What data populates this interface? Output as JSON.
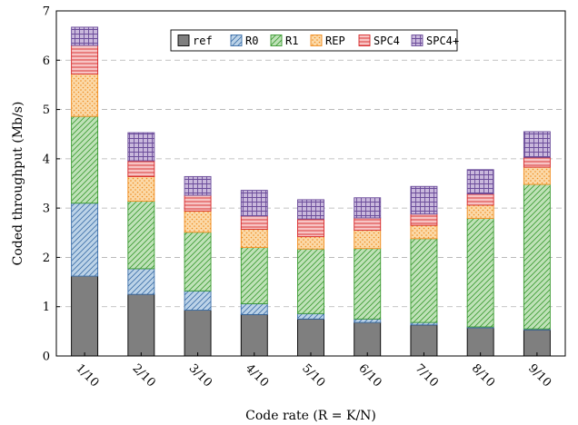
{
  "chart_data": {
    "type": "bar",
    "stacked": true,
    "categories": [
      "1/10",
      "2/10",
      "3/10",
      "4/10",
      "5/10",
      "6/10",
      "7/10",
      "8/10",
      "9/10"
    ],
    "series": [
      {
        "name": "ref",
        "values": [
          1.62,
          1.25,
          0.93,
          0.84,
          0.75,
          0.68,
          0.63,
          0.57,
          0.53
        ]
      },
      {
        "name": "R0",
        "values": [
          1.48,
          0.52,
          0.39,
          0.22,
          0.11,
          0.07,
          0.05,
          0.02,
          0.02
        ]
      },
      {
        "name": "R1",
        "values": [
          1.76,
          1.37,
          1.19,
          1.14,
          1.31,
          1.43,
          1.7,
          2.2,
          2.93
        ]
      },
      {
        "name": "REP",
        "values": [
          0.86,
          0.5,
          0.43,
          0.37,
          0.25,
          0.37,
          0.27,
          0.27,
          0.35
        ]
      },
      {
        "name": "SPC4",
        "values": [
          0.58,
          0.32,
          0.32,
          0.27,
          0.36,
          0.25,
          0.23,
          0.23,
          0.2
        ]
      },
      {
        "name": "SPC4+",
        "values": [
          0.37,
          0.57,
          0.38,
          0.52,
          0.39,
          0.41,
          0.56,
          0.49,
          0.52
        ]
      }
    ],
    "xlabel": "Code rate (R = K/N)",
    "ylabel": "Coded throughput (Mb/s)",
    "ylim": [
      0,
      7
    ],
    "yticks": [
      0,
      1,
      2,
      3,
      4,
      5,
      6,
      7
    ],
    "grid": "horizontal-dashed",
    "legend": "top-center",
    "colors": {
      "ref": {
        "fill": "#7f7f7f",
        "stroke": "#000000"
      },
      "R0": {
        "fill": "#bcd3e8",
        "stroke": "#3b6ea8"
      },
      "R1": {
        "fill": "#bfe2b8",
        "stroke": "#3a9a30"
      },
      "REP": {
        "fill": "#fbd9a8",
        "stroke": "#f08c1e"
      },
      "SPC4": {
        "fill": "#f7c4c4",
        "stroke": "#d62728"
      },
      "SPC4+": {
        "fill": "#c9b8dc",
        "stroke": "#6b4c9a"
      }
    }
  }
}
